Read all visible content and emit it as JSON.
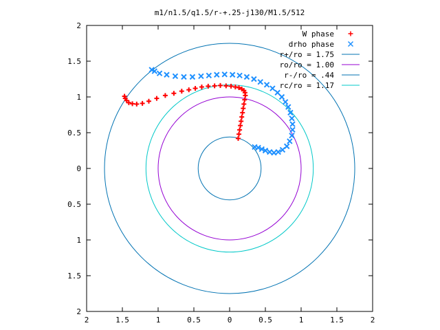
{
  "chart_data": {
    "type": "scatter",
    "title": "m1/n1.5/q1.5/r-+.25-j130/M1.5/512",
    "xlabel": "",
    "ylabel": "",
    "xlim": [
      -2,
      2
    ],
    "ylim": [
      -2,
      2
    ],
    "x_tick_values": [
      -2,
      -1.5,
      -1,
      -0.5,
      0,
      0.5,
      1,
      1.5,
      2
    ],
    "y_tick_values": [
      -2,
      -1.5,
      -1,
      -0.5,
      0,
      0.5,
      1,
      1.5,
      2
    ],
    "x_tick_labels": [
      "2",
      "1.5",
      "1",
      "0.5",
      "0",
      "0.5",
      "1",
      "1.5",
      "2"
    ],
    "y_tick_labels": [
      "2",
      "1.5",
      "1",
      "0.5",
      "0",
      "0.5",
      "1",
      "1.5",
      "2"
    ],
    "grid": false,
    "legend_position": "top-right",
    "series": [
      {
        "name": "W phase",
        "kind": "points",
        "marker": "+",
        "color": "#ff0000",
        "x": [
          0.12,
          0.13,
          0.14,
          0.15,
          0.16,
          0.17,
          0.18,
          0.19,
          0.2,
          0.21,
          0.22,
          0.215,
          0.2,
          0.17,
          0.13,
          0.08,
          0.02,
          -0.05,
          -0.13,
          -0.21,
          -0.3,
          -0.39,
          -0.48,
          -0.57,
          -0.67,
          -0.78,
          -0.9,
          -1.02,
          -1.13,
          -1.22,
          -1.3,
          -1.36,
          -1.41,
          -1.44,
          -1.46,
          -1.47
        ],
        "y": [
          0.42,
          0.48,
          0.54,
          0.6,
          0.66,
          0.72,
          0.78,
          0.84,
          0.9,
          0.96,
          1.02,
          1.06,
          1.09,
          1.11,
          1.13,
          1.14,
          1.15,
          1.155,
          1.16,
          1.155,
          1.15,
          1.14,
          1.12,
          1.1,
          1.08,
          1.05,
          1.02,
          0.98,
          0.94,
          0.91,
          0.9,
          0.905,
          0.92,
          0.95,
          0.98,
          1.01
        ]
      },
      {
        "name": "drho phase",
        "kind": "points",
        "marker": "x",
        "color": "#1e90ff",
        "x": [
          0.35,
          0.4,
          0.45,
          0.5,
          0.56,
          0.62,
          0.68,
          0.74,
          0.8,
          0.84,
          0.87,
          0.88,
          0.88,
          0.87,
          0.85,
          0.82,
          0.78,
          0.73,
          0.67,
          0.6,
          0.52,
          0.43,
          0.34,
          0.24,
          0.14,
          0.04,
          -0.07,
          -0.18,
          -0.29,
          -0.4,
          -0.52,
          -0.64,
          -0.76,
          -0.88,
          -0.98,
          -1.05,
          -1.09
        ],
        "y": [
          0.3,
          0.29,
          0.27,
          0.25,
          0.23,
          0.22,
          0.23,
          0.26,
          0.31,
          0.38,
          0.46,
          0.54,
          0.62,
          0.7,
          0.78,
          0.86,
          0.93,
          1.0,
          1.06,
          1.12,
          1.17,
          1.21,
          1.25,
          1.28,
          1.3,
          1.31,
          1.315,
          1.31,
          1.3,
          1.29,
          1.28,
          1.28,
          1.29,
          1.31,
          1.33,
          1.36,
          1.38
        ]
      },
      {
        "name": "r+/ro = 1.75",
        "kind": "circle",
        "radius": 1.75,
        "color": "#0072b2"
      },
      {
        "name": "ro/ro = 1.00",
        "kind": "circle",
        "radius": 1.0,
        "color": "#9400d3"
      },
      {
        "name": "r-/ro = .44",
        "kind": "circle",
        "radius": 0.44,
        "color": "#0072b2"
      },
      {
        "name": "rc/ro = 1.17",
        "kind": "circle",
        "radius": 1.17,
        "color": "#00c8c8"
      }
    ]
  }
}
